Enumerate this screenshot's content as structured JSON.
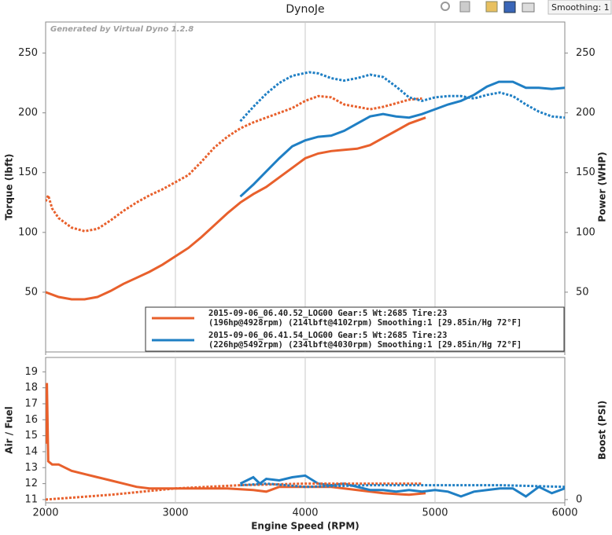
{
  "title": "DynoJe",
  "toolbar": {
    "smoothing": "Smoothing: 1"
  },
  "chart_data": [
    {
      "type": "line",
      "watermark": "Generated by Virtual Dyno 1.2.8",
      "ylabel": "Torque (lbft)",
      "y2label": "Power (WHP)",
      "xlim": [
        2000,
        6000
      ],
      "xticks": [
        2000,
        3000,
        4000,
        5000,
        6000
      ],
      "xtick_labels": false,
      "ylim": [
        0,
        276
      ],
      "yticks": [
        50,
        100,
        150,
        200,
        250
      ],
      "y2lim": [
        0,
        276
      ],
      "y2ticks": [
        50,
        100,
        150,
        200,
        250
      ],
      "legend": [
        {
          "line1": "2015-09-06_06.40.52_LOG00 Gear:5 Wt:2685 Tire:23",
          "line2": "(196hp@4928rpm) (214lbft@4102rpm) Smoothing:1 [29.85in/Hg 72°F]",
          "color": "#e8602c"
        },
        {
          "line1": "2015-09-06_06.41.54_LOG00 Gear:5 Wt:2685 Tire:23",
          "line2": "(226hp@5492rpm) (234lbft@4030rpm) Smoothing:1 [29.85in/Hg 72°F]",
          "color": "#1f7fc4"
        }
      ],
      "series": [
        {
          "color": "#e8602c",
          "style": "dotted",
          "x": [
            2000,
            2020,
            2050,
            2100,
            2200,
            2300,
            2400,
            2500,
            2600,
            2700,
            2800,
            2900,
            3000,
            3100,
            3200,
            3300,
            3400,
            3500,
            3600,
            3700,
            3800,
            3900,
            4000,
            4102,
            4200,
            4300,
            4400,
            4500,
            4600,
            4700,
            4800,
            4900
          ],
          "values": [
            126,
            131,
            120,
            112,
            104,
            101,
            103,
            110,
            118,
            125,
            131,
            136,
            142,
            148,
            159,
            171,
            180,
            187,
            192,
            196,
            200,
            204,
            210,
            214,
            213,
            207,
            205,
            203,
            205,
            208,
            211,
            212
          ]
        },
        {
          "color": "#e8602c",
          "style": "solid",
          "axis": "y2",
          "x": [
            2000,
            2100,
            2200,
            2300,
            2400,
            2500,
            2600,
            2700,
            2800,
            2900,
            3000,
            3100,
            3200,
            3300,
            3400,
            3500,
            3600,
            3700,
            3800,
            3900,
            4000,
            4100,
            4200,
            4300,
            4400,
            4500,
            4600,
            4700,
            4800,
            4928
          ],
          "values": [
            50,
            46,
            44,
            44,
            46,
            51,
            57,
            62,
            67,
            73,
            80,
            87,
            96,
            106,
            116,
            125,
            132,
            138,
            146,
            154,
            162,
            166,
            168,
            169,
            170,
            173,
            179,
            185,
            191,
            196
          ]
        },
        {
          "color": "#1f7fc4",
          "style": "dotted",
          "x": [
            3500,
            3600,
            3700,
            3800,
            3900,
            4030,
            4100,
            4200,
            4300,
            4400,
            4500,
            4600,
            4700,
            4800,
            4900,
            5000,
            5100,
            5200,
            5300,
            5400,
            5500,
            5600,
            5700,
            5800,
            5900,
            6000
          ],
          "values": [
            193,
            205,
            216,
            225,
            231,
            234,
            233,
            229,
            227,
            229,
            232,
            230,
            222,
            213,
            210,
            213,
            214,
            214,
            212,
            215,
            217,
            214,
            207,
            201,
            197,
            196
          ]
        },
        {
          "color": "#1f7fc4",
          "style": "solid",
          "axis": "y2",
          "x": [
            3500,
            3600,
            3700,
            3800,
            3900,
            4000,
            4100,
            4200,
            4300,
            4400,
            4500,
            4600,
            4700,
            4800,
            4900,
            5000,
            5100,
            5200,
            5300,
            5400,
            5492,
            5600,
            5700,
            5800,
            5900,
            6000
          ],
          "values": [
            130,
            140,
            151,
            162,
            172,
            177,
            180,
            181,
            185,
            191,
            197,
            199,
            197,
            196,
            199,
            203,
            207,
            210,
            215,
            222,
            226,
            226,
            221,
            221,
            220,
            221
          ]
        }
      ]
    },
    {
      "type": "line",
      "xlabel": "Engine Speed (RPM)",
      "ylabel": "Air / Fuel",
      "y2label": "Boost (PSI)",
      "xlim": [
        2000,
        6000
      ],
      "xticks": [
        2000,
        3000,
        4000,
        5000,
        6000
      ],
      "xtick_labels": true,
      "ylim": [
        10.8,
        19.9
      ],
      "yticks": [
        11,
        12,
        13,
        14,
        15,
        16,
        17,
        18,
        19
      ],
      "y2lim": [
        -0.2,
        8.9
      ],
      "y2ticks": [
        0
      ],
      "series": [
        {
          "color": "#e8602c",
          "style": "solid",
          "x": [
            2000,
            2010,
            2020,
            2050,
            2100,
            2150,
            2200,
            2300,
            2400,
            2500,
            2600,
            2700,
            2800,
            3000,
            3200,
            3400,
            3600,
            3700,
            3800,
            4000,
            4200,
            4400,
            4600,
            4800,
            4928
          ],
          "values": [
            14.5,
            18.3,
            13.4,
            13.2,
            13.2,
            13.0,
            12.8,
            12.6,
            12.4,
            12.2,
            12.0,
            11.8,
            11.7,
            11.7,
            11.7,
            11.7,
            11.6,
            11.5,
            11.8,
            11.8,
            11.8,
            11.6,
            11.4,
            11.3,
            11.4
          ]
        },
        {
          "color": "#1f7fc4",
          "style": "solid",
          "x": [
            3500,
            3600,
            3650,
            3700,
            3800,
            3900,
            4000,
            4100,
            4200,
            4300,
            4400,
            4500,
            4600,
            4700,
            4800,
            4900,
            5000,
            5100,
            5200,
            5300,
            5400,
            5500,
            5600,
            5700,
            5800,
            5900,
            6000
          ],
          "values": [
            12.0,
            12.4,
            12.0,
            12.3,
            12.2,
            12.4,
            12.5,
            12.0,
            11.9,
            12.0,
            11.8,
            11.6,
            11.6,
            11.5,
            11.6,
            11.5,
            11.6,
            11.5,
            11.2,
            11.5,
            11.6,
            11.7,
            11.7,
            11.2,
            11.8,
            11.4,
            11.7
          ]
        },
        {
          "color": "#e8602c",
          "style": "dotted",
          "axis": "y2",
          "x": [
            2000,
            2500,
            3000,
            3500,
            4000,
            4500,
            4900
          ],
          "values": [
            0,
            0.3,
            0.7,
            0.9,
            1.0,
            1.0,
            1.0
          ]
        },
        {
          "color": "#1f7fc4",
          "style": "dotted",
          "axis": "y2",
          "x": [
            3500,
            3700,
            4000,
            4500,
            5000,
            5500,
            6000
          ],
          "values": [
            0.9,
            1.0,
            0.8,
            0.9,
            0.9,
            0.9,
            0.8
          ]
        }
      ]
    }
  ]
}
